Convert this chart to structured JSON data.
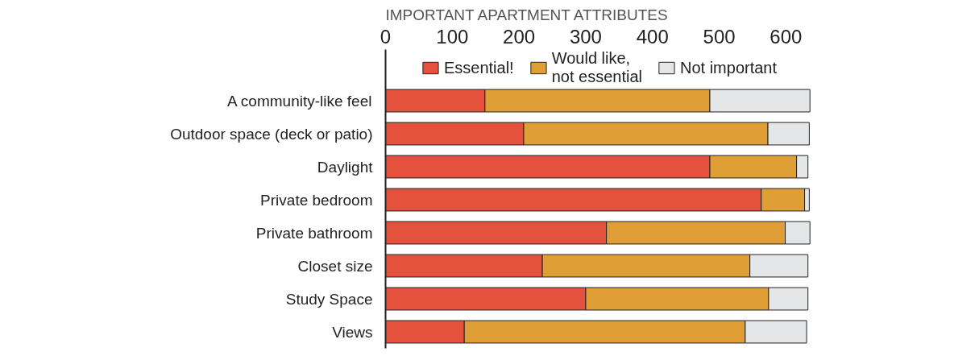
{
  "chart_data": {
    "type": "bar",
    "orientation": "horizontal",
    "stacked": true,
    "title": "IMPORTANT APARTMENT ATTRIBUTES",
    "categories": [
      "A community-like feel",
      "Outdoor space (deck or patio)",
      "Daylight",
      "Private bedroom",
      "Private bathroom",
      "Closet size",
      "Study Space",
      "Views"
    ],
    "series": [
      {
        "name": "Essential!",
        "color": "#e4523e",
        "values": [
          149,
          207,
          486,
          563,
          331,
          235,
          300,
          118
        ]
      },
      {
        "name": "Would like,\nnot essential",
        "color": "#e09e37",
        "values": [
          337,
          366,
          130,
          65,
          268,
          311,
          274,
          421
        ]
      },
      {
        "name": "Not important",
        "color": "#e5e6e8",
        "values": [
          150,
          62,
          17,
          7,
          37,
          87,
          59,
          92
        ]
      }
    ],
    "xlim": [
      0,
      640
    ],
    "xticks": [
      0,
      100,
      200,
      300,
      400,
      500,
      600
    ],
    "grid": false,
    "legend": "top"
  }
}
